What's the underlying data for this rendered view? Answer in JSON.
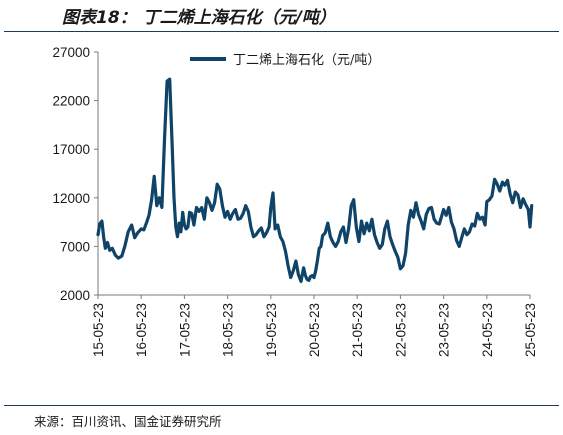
{
  "figure_title": "图表18： 丁二烯上海石化（元/吨）",
  "source_note": "来源：百川资讯、国金证券研究所",
  "colors": {
    "series": "#0f4468",
    "axis": "#7a7a7a",
    "rule": "#1f3a5f"
  },
  "chart_data": {
    "type": "line",
    "title": "",
    "xlabel": "",
    "ylabel": "",
    "ylim": [
      2000,
      27000
    ],
    "yticks": [
      2000,
      7000,
      12000,
      17000,
      22000,
      27000
    ],
    "xticks": [
      "15-05-23",
      "16-05-23",
      "17-05-23",
      "18-05-23",
      "19-05-23",
      "20-05-23",
      "21-05-23",
      "22-05-23",
      "23-05-23",
      "24-05-23",
      "25-05-23"
    ],
    "legend": "top-left",
    "grid": false,
    "series": [
      {
        "name": "丁二烯上海石化（元/吨）",
        "color": "#0f4468",
        "x": [
          2015.0,
          2015.04,
          2015.09,
          2015.13,
          2015.17,
          2015.22,
          2015.27,
          2015.33,
          2015.4,
          2015.47,
          2015.55,
          2015.62,
          2015.7,
          2015.78,
          2015.85,
          2015.92,
          2016.0,
          2016.06,
          2016.12,
          2016.18,
          2016.24,
          2016.3,
          2016.36,
          2016.42,
          2016.48,
          2016.54,
          2016.6,
          2016.66,
          2016.72,
          2016.76,
          2016.8,
          2016.84,
          2016.88,
          2016.92,
          2016.96,
          2017.0,
          2017.04,
          2017.08,
          2017.12,
          2017.17,
          2017.22,
          2017.28,
          2017.34,
          2017.4,
          2017.46,
          2017.52,
          2017.58,
          2017.64,
          2017.7,
          2017.76,
          2017.82,
          2017.88,
          2017.94,
          2018.0,
          2018.06,
          2018.12,
          2018.18,
          2018.24,
          2018.3,
          2018.36,
          2018.42,
          2018.48,
          2018.54,
          2018.6,
          2018.66,
          2018.72,
          2018.78,
          2018.84,
          2018.9,
          2018.96,
          2019.0,
          2019.05,
          2019.1,
          2019.16,
          2019.22,
          2019.28,
          2019.34,
          2019.4,
          2019.46,
          2019.52,
          2019.58,
          2019.64,
          2019.7,
          2019.76,
          2019.8,
          2019.84,
          2019.88,
          2019.92,
          2019.96,
          2020.0,
          2020.04,
          2020.08,
          2020.12,
          2020.16,
          2020.2,
          2020.26,
          2020.32,
          2020.38,
          2020.44,
          2020.5,
          2020.56,
          2020.62,
          2020.68,
          2020.74,
          2020.8,
          2020.86,
          2020.92,
          2020.98,
          2021.04,
          2021.1,
          2021.16,
          2021.22,
          2021.28,
          2021.34,
          2021.4,
          2021.46,
          2021.52,
          2021.58,
          2021.64,
          2021.7,
          2021.76,
          2021.82,
          2021.88,
          2021.94,
          2022.0,
          2022.06,
          2022.12,
          2022.18,
          2022.24,
          2022.3,
          2022.36,
          2022.42,
          2022.48,
          2022.54,
          2022.6,
          2022.66,
          2022.72,
          2022.78,
          2022.84,
          2022.9,
          2022.96,
          2023.0,
          2023.06,
          2023.12,
          2023.18,
          2023.24,
          2023.3,
          2023.36,
          2023.42,
          2023.48,
          2023.54,
          2023.6,
          2023.66,
          2023.72,
          2023.78,
          2023.84,
          2023.9,
          2023.96,
          2024.0,
          2024.06,
          2024.12,
          2024.18,
          2024.24,
          2024.3,
          2024.36,
          2024.42,
          2024.48,
          2024.54,
          2024.6,
          2024.66,
          2024.72,
          2024.78,
          2024.84,
          2024.9,
          2024.96,
          2025.0,
          2025.04
        ],
        "y": [
          8200,
          9300,
          9600,
          8000,
          6800,
          7400,
          6600,
          6800,
          6100,
          5800,
          6000,
          7000,
          8500,
          9200,
          7900,
          8400,
          8800,
          8700,
          9400,
          10200,
          11800,
          14200,
          11200,
          12000,
          11000,
          18000,
          24000,
          24200,
          17000,
          12000,
          9000,
          8000,
          9400,
          8500,
          10500,
          9200,
          8800,
          9000,
          10500,
          10400,
          9200,
          11000,
          10600,
          11000,
          9800,
          12000,
          11500,
          10700,
          11500,
          13400,
          12900,
          11200,
          10000,
          10600,
          9800,
          10400,
          10800,
          9800,
          9900,
          10400,
          11200,
          10600,
          9000,
          8000,
          8200,
          8600,
          8900,
          8000,
          8400,
          9000,
          11000,
          12500,
          8800,
          9200,
          8000,
          7500,
          6500,
          5000,
          3800,
          4500,
          5500,
          4100,
          3400,
          4800,
          4000,
          3600,
          3500,
          3900,
          4000,
          3800,
          4500,
          5600,
          6800,
          7000,
          8100,
          8400,
          9400,
          8000,
          7400,
          7000,
          7500,
          8500,
          9000,
          7400,
          8800,
          11200,
          11800,
          9000,
          7500,
          9600,
          8300,
          9400,
          8600,
          9800,
          8200,
          7400,
          6800,
          7200,
          8800,
          9600,
          8000,
          7200,
          6500,
          5900,
          4700,
          5000,
          6300,
          9200,
          10700,
          10000,
          11500,
          10300,
          9600,
          8800,
          10300,
          10900,
          11000,
          9800,
          9400,
          9300,
          10200,
          10800,
          10200,
          11000,
          9500,
          8800,
          7600,
          7000,
          7900,
          8800,
          8200,
          8500,
          9300,
          9100,
          10400,
          9800,
          10000,
          9200,
          11600,
          11800,
          12200,
          13900,
          13400,
          12700,
          13600,
          13300,
          13800,
          12400,
          11500,
          12600,
          12300,
          11000,
          11900,
          11300,
          10800,
          9000,
          11200
        ]
      }
    ]
  }
}
